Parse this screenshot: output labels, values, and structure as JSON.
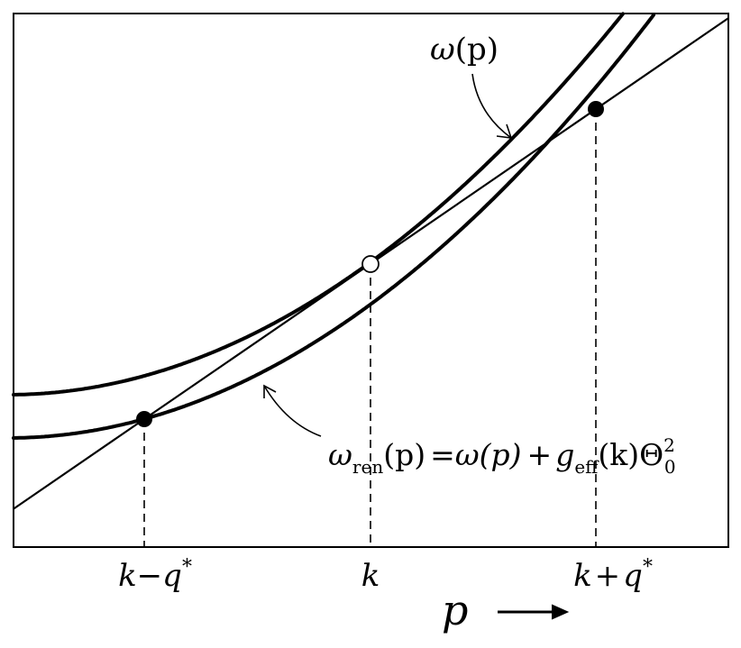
{
  "curves": {
    "omega": {
      "label_main": "ω",
      "label_rest": "(p)"
    },
    "omega_ren": {
      "lhs_main": "ω",
      "lhs_sub": "ren",
      "lhs_arg": "(p)",
      "equals": "=",
      "rhs_term1": "ω(p)",
      "plus": "+",
      "rhs_g": "g",
      "rhs_g_sub": "eff",
      "rhs_g_arg": "(k)",
      "rhs_theta": "Θ",
      "rhs_theta_sub": "0",
      "rhs_theta_sup": "2"
    }
  },
  "points": [
    {
      "name": "k-q*",
      "style": "filled"
    },
    {
      "name": "k",
      "style": "open"
    },
    {
      "name": "k+q*",
      "style": "filled"
    }
  ],
  "x_ticks": {
    "left": {
      "var": "k",
      "op": "−",
      "q": "q",
      "star": "*"
    },
    "center": {
      "var": "k"
    },
    "right": {
      "var": "k",
      "op": "+",
      "q": "q",
      "star": "*"
    }
  },
  "x_axis": {
    "label": "p",
    "arrow": "⟶"
  }
}
